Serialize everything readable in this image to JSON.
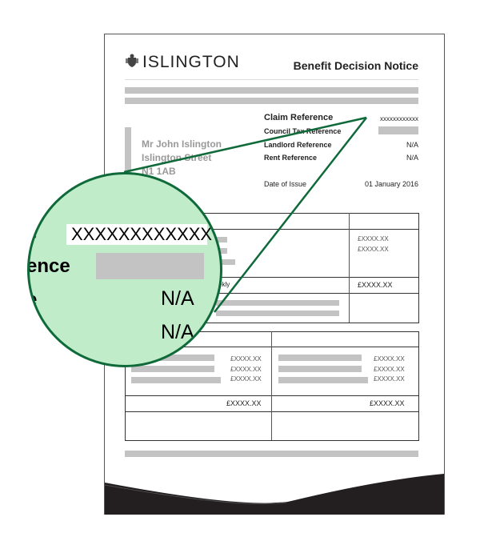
{
  "header": {
    "logo_text": "ISLINGTON",
    "title": "Benefit Decision Notice",
    "logo_icon": "coat-of-arms-icon"
  },
  "address": {
    "name": "Mr John Islington",
    "street": "Islington Street",
    "postcode": "N1 1AB"
  },
  "references": [
    {
      "label": "Claim Reference",
      "value": "xxxxxxxxxxxx"
    },
    {
      "label": "Council Tax Reference",
      "value": ""
    },
    {
      "label": "Landlord Reference",
      "value": "N/A"
    },
    {
      "label": "Rent Reference",
      "value": "N/A"
    }
  ],
  "date": {
    "label": "Date of Issue",
    "value": "01 January 2016"
  },
  "table1": {
    "amounts": [
      "£XXXX.XX",
      "£XXXX.XX"
    ],
    "row_label": "ekly",
    "total": "£XXXX.XX"
  },
  "table2": {
    "left_amounts": [
      "£XXXX.XX",
      "£XXXX.XX",
      "£XXXX.XX"
    ],
    "right_amounts": [
      "£XXXX.XX",
      "£XXXX.XX",
      "£XXXX.XX"
    ],
    "left_total": "£XXXX.XX",
    "right_total": "£XXXX.XX"
  },
  "magnifier": {
    "label1": "e",
    "value1": "XXXXXXXXXXXX",
    "label2": "ence",
    "label3": "e",
    "value3": "N/A",
    "value4": "N/A",
    "color": "#c0ecca",
    "border": "#0f6a3a"
  }
}
